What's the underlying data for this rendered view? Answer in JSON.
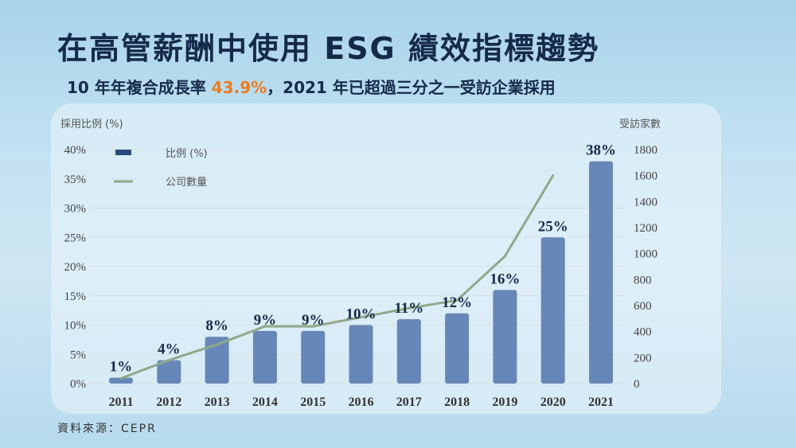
{
  "title": "在高管薪酬中使用 ESG 績效指標趨勢",
  "subtitle": {
    "prefix": "10 年年複合成長率 ",
    "highlight": "43.9%",
    "suffix": "，2021 年已超過三分之一受訪企業採用"
  },
  "source": "資料來源：CEPR",
  "colors": {
    "bar": "#6887b9",
    "line": "#8fa88a",
    "highlight": "#ee7b1e",
    "title": "#152a4a"
  },
  "chart_data": {
    "type": "bar+line",
    "categories": [
      "2011",
      "2012",
      "2013",
      "2014",
      "2015",
      "2016",
      "2017",
      "2018",
      "2019",
      "2020",
      "2021"
    ],
    "series": [
      {
        "name": "比例 (%)",
        "type": "bar",
        "axis": "left",
        "values": [
          1,
          4,
          8,
          9,
          9,
          10,
          11,
          12,
          16,
          25,
          38
        ],
        "labels": [
          "1%",
          "4%",
          "8%",
          "9%",
          "9%",
          "10%",
          "11%",
          "12%",
          "16%",
          "25%",
          "38%"
        ]
      },
      {
        "name": "公司數量",
        "type": "line",
        "axis": "right",
        "values": [
          40,
          180,
          300,
          440,
          440,
          510,
          580,
          640,
          980,
          1600,
          null
        ]
      }
    ],
    "ylabel_left": "採用比例 (%)",
    "ylim_left": [
      0,
      40
    ],
    "yticks_left": [
      "0%",
      "5%",
      "10%",
      "15%",
      "20%",
      "25%",
      "30%",
      "35%",
      "40%"
    ],
    "ylabel_right": "受訪家數",
    "ylim_right": [
      0,
      1800
    ],
    "yticks_right": [
      "0",
      "200",
      "400",
      "600",
      "800",
      "1000",
      "1200",
      "1400",
      "1600",
      "1800"
    ],
    "grid": true,
    "legend": "top-left"
  }
}
